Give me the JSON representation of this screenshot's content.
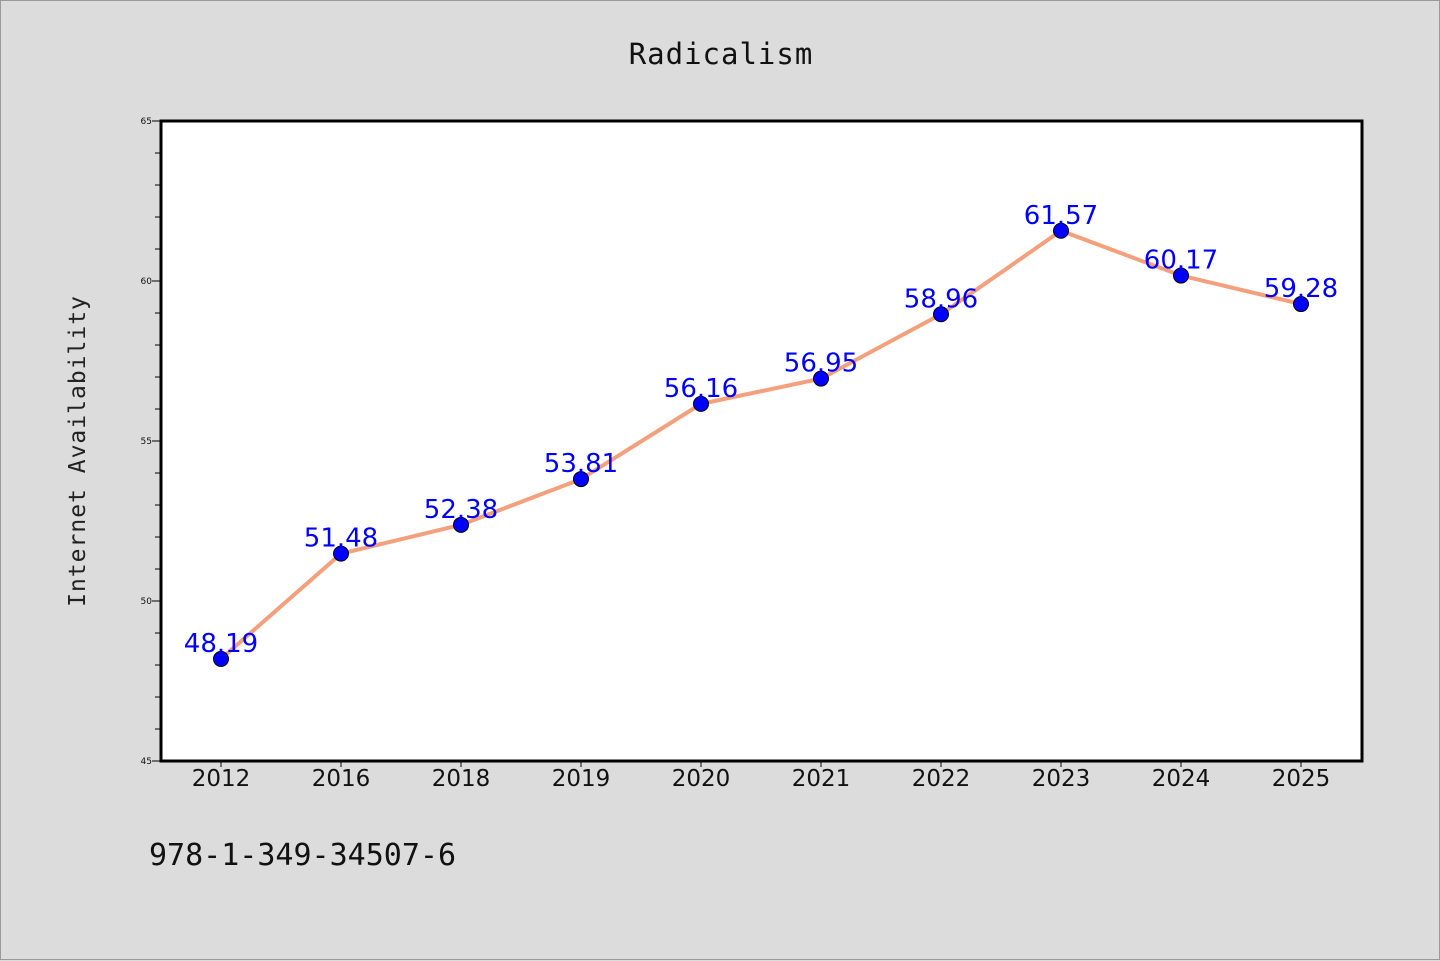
{
  "chart_data": {
    "type": "line",
    "title": "Radicalism",
    "xlabel": "",
    "ylabel": "Internet Availability",
    "categories": [
      "2012",
      "2016",
      "2018",
      "2019",
      "2020",
      "2021",
      "2022",
      "2023",
      "2024",
      "2025"
    ],
    "series": [
      {
        "values": [
          48.19,
          51.48,
          52.38,
          53.81,
          56.16,
          56.95,
          58.96,
          61.57,
          60.17,
          59.28
        ],
        "data_labels": [
          "48.19",
          "51.48",
          "52.38",
          "53.81",
          "56.16",
          "56.95",
          "58.96",
          "61.57",
          "60.17",
          "59.28"
        ],
        "line_color": "#f4a07c",
        "marker_color": "#0000ff"
      }
    ],
    "ylim": [
      45,
      65
    ],
    "yticks": [
      45,
      50,
      55,
      60,
      65
    ],
    "grid": false,
    "legend": "none"
  },
  "footer": {
    "text": "978-1-349-34507-6"
  },
  "colors": {
    "background": "#dcdcdc",
    "plot_background": "#ffffff",
    "label_color": "#0000ff"
  }
}
